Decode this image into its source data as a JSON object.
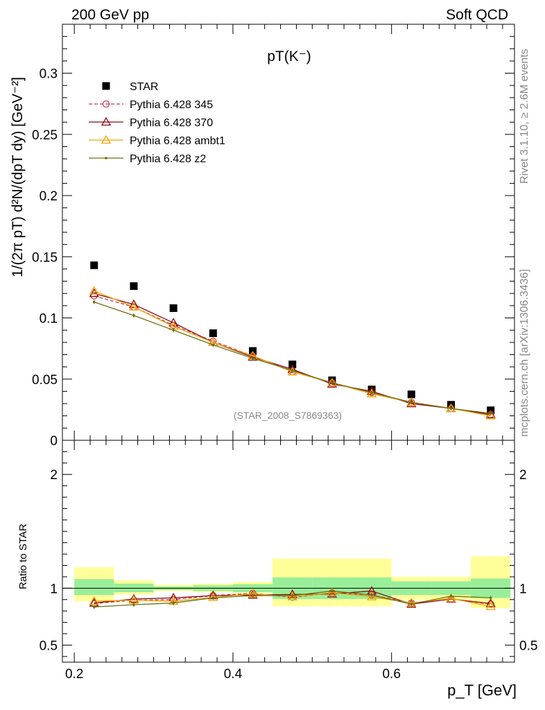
{
  "header": {
    "left": "200 GeV pp",
    "right": "Soft QCD"
  },
  "side_labels": {
    "rivet": "Rivet 3.1.10, ≥ 2.6M events",
    "mcplots": "mcplots.cern.ch [arXiv:1306.3436]"
  },
  "chart_data": [
    {
      "type": "scatter",
      "title": "pT(K⁻)",
      "watermark": "(STAR_2008_S7869363)",
      "ylabel": "1/(2π pT) d²N/(dpT dy) [GeV⁻²]",
      "xlim": [
        0.185,
        0.755
      ],
      "ylim": [
        0,
        0.34
      ],
      "yticks": [
        0,
        0.05,
        0.1,
        0.15,
        0.2,
        0.25,
        0.3
      ],
      "ytick_labels": [
        "0",
        "0.05",
        "0.1",
        "0.15",
        "0.2",
        "0.25",
        "0.3"
      ],
      "x": [
        0.225,
        0.275,
        0.325,
        0.375,
        0.425,
        0.475,
        0.525,
        0.575,
        0.625,
        0.675,
        0.725
      ],
      "series": [
        {
          "name": "STAR",
          "color": "#000000",
          "marker": "square",
          "values": [
            0.143,
            0.126,
            0.108,
            0.0875,
            0.073,
            0.062,
            0.049,
            0.0415,
            0.0375,
            0.029,
            0.0245
          ]
        },
        {
          "name": "Pythia 6.428 345",
          "color": "#c0394b",
          "marker": "circle",
          "dashed": true,
          "values": [
            0.118,
            0.109,
            0.094,
            0.081,
            0.069,
            0.056,
            0.047,
            0.039,
            0.031,
            0.026,
            0.021
          ]
        },
        {
          "name": "Pythia 6.428 370",
          "color": "#8b0a1a",
          "marker": "triangle",
          "values": [
            0.12,
            0.111,
            0.096,
            0.08,
            0.068,
            0.058,
            0.046,
            0.04,
            0.03,
            0.026,
            0.021
          ]
        },
        {
          "name": "Pythia 6.428 ambt1",
          "color": "#f5a300",
          "marker": "triangle",
          "values": [
            0.122,
            0.109,
            0.093,
            0.08,
            0.069,
            0.056,
            0.047,
            0.038,
            0.031,
            0.026,
            0.02
          ]
        },
        {
          "name": "Pythia 6.428 z2",
          "color": "#6b7010",
          "marker": "dot",
          "values": [
            0.113,
            0.102,
            0.09,
            0.078,
            0.067,
            0.057,
            0.047,
            0.039,
            0.031,
            0.026,
            0.022
          ]
        }
      ]
    },
    {
      "type": "line",
      "ylabel": "Ratio to STAR",
      "xlabel": "p_T [GeV]",
      "xlim": [
        0.185,
        0.755
      ],
      "ylim": [
        0.35,
        2.3
      ],
      "xticks": [
        0.2,
        0.4,
        0.6
      ],
      "xtick_labels": [
        "0.2",
        "0.4",
        "0.6"
      ],
      "yticks": [
        0.5,
        1,
        2
      ],
      "ytick_labels": [
        "0.5",
        "1",
        "2"
      ],
      "band_edges": [
        0.2,
        0.25,
        0.3,
        0.35,
        0.4,
        0.45,
        0.5,
        0.55,
        0.6,
        0.65,
        0.7,
        0.75
      ],
      "band_inner": [
        [
          0.94,
          1.08
        ],
        [
          0.965,
          1.04
        ],
        [
          0.985,
          1.015
        ],
        [
          0.975,
          1.025
        ],
        [
          0.965,
          1.035
        ],
        [
          0.905,
          1.095
        ],
        [
          0.905,
          1.095
        ],
        [
          0.905,
          1.095
        ],
        [
          0.94,
          1.06
        ],
        [
          0.94,
          1.06
        ],
        [
          0.915,
          1.085
        ]
      ],
      "band_outer": [
        [
          0.885,
          1.185
        ],
        [
          0.945,
          1.07
        ],
        [
          0.975,
          1.03
        ],
        [
          0.965,
          1.04
        ],
        [
          0.955,
          1.055
        ],
        [
          0.84,
          1.26
        ],
        [
          0.84,
          1.26
        ],
        [
          0.84,
          1.26
        ],
        [
          0.9,
          1.1
        ],
        [
          0.9,
          1.1
        ],
        [
          0.825,
          1.28
        ]
      ],
      "x": [
        0.225,
        0.275,
        0.325,
        0.375,
        0.425,
        0.475,
        0.525,
        0.575,
        0.625,
        0.675,
        0.725
      ],
      "series": [
        {
          "name": "Pythia 6.428 345",
          "color": "#c0394b",
          "marker": "circle",
          "dashed": true,
          "values": [
            0.865,
            0.895,
            0.9,
            0.935,
            0.955,
            0.92,
            0.96,
            0.94,
            0.87,
            0.905,
            0.86
          ]
        },
        {
          "name": "Pythia 6.428 370",
          "color": "#8b0a1a",
          "marker": "triangle",
          "values": [
            0.87,
            0.905,
            0.915,
            0.935,
            0.94,
            0.945,
            0.95,
            0.975,
            0.86,
            0.905,
            0.865
          ]
        },
        {
          "name": "Pythia 6.428 ambt1",
          "color": "#f5a300",
          "marker": "triangle",
          "values": [
            0.885,
            0.895,
            0.885,
            0.92,
            0.95,
            0.925,
            0.96,
            0.925,
            0.87,
            0.91,
            0.84
          ]
        },
        {
          "name": "Pythia 6.428 z2",
          "color": "#6b7010",
          "marker": "dot",
          "values": [
            0.835,
            0.855,
            0.87,
            0.915,
            0.935,
            0.935,
            0.975,
            0.94,
            0.86,
            0.93,
            0.915
          ]
        }
      ]
    }
  ]
}
